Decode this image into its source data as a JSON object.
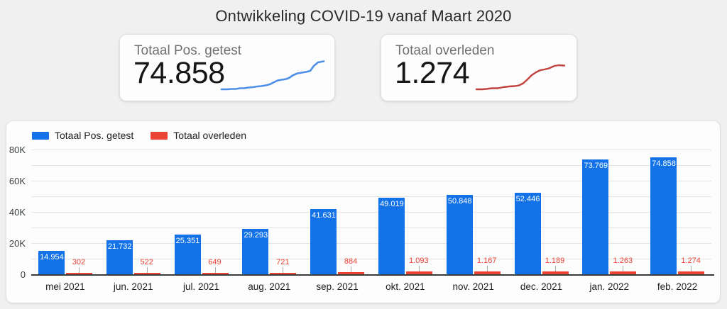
{
  "header": {
    "title": "Ontwikkeling COVID-19 vanaf Maart 2020"
  },
  "kpi_cards": [
    {
      "label": "Totaal Pos. getest",
      "value": "74.858",
      "trend_color": "#4d8fe8"
    },
    {
      "label": "Totaal overleden",
      "value": "1.274",
      "trend_color": "#c2423d"
    }
  ],
  "chart_data": {
    "type": "bar",
    "categories": [
      "mei 2021",
      "jun. 2021",
      "jul. 2021",
      "aug. 2021",
      "sep. 2021",
      "okt. 2021",
      "nov. 2021",
      "dec. 2021",
      "jan. 2022",
      "feb. 2022"
    ],
    "series": [
      {
        "name": "Totaal Pos. getest",
        "color": "#1372e8",
        "values": [
          14954,
          21732,
          25351,
          29293,
          41631,
          49019,
          50848,
          52446,
          73769,
          74858
        ],
        "labels": [
          "14.954",
          "21.732",
          "25.351",
          "29.293",
          "41.631",
          "49.019",
          "50.848",
          "52.446",
          "73.769",
          "74.858"
        ]
      },
      {
        "name": "Totaal overleden",
        "color": "#ea4335",
        "values": [
          302,
          522,
          649,
          721,
          884,
          1093,
          1167,
          1189,
          1263,
          1274
        ],
        "labels": [
          "302",
          "522",
          "649",
          "721",
          "884",
          "1.093",
          "1.167",
          "1.189",
          "1.263",
          "1.274"
        ]
      }
    ],
    "ylim": [
      0,
      80000
    ],
    "gridline_step": 10000,
    "yticks": [
      {
        "value": 80000,
        "label": "80K"
      },
      {
        "value": 60000,
        "label": "60K"
      },
      {
        "value": 40000,
        "label": "40K"
      },
      {
        "value": 20000,
        "label": "20K"
      },
      {
        "value": 0,
        "label": "0"
      }
    ],
    "grid": true,
    "legend_position": "top-left"
  }
}
